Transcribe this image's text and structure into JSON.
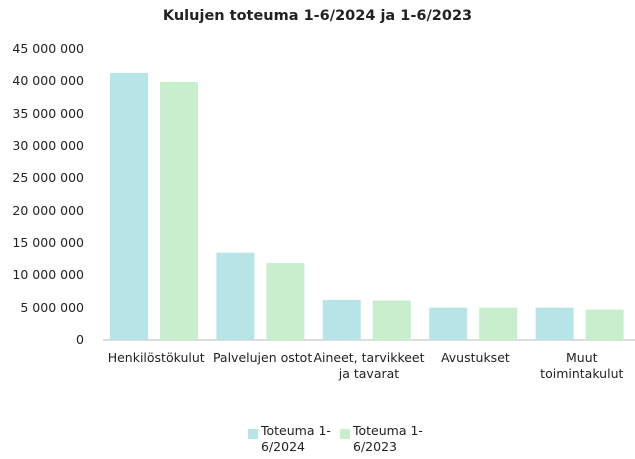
{
  "chart_data": {
    "type": "bar",
    "title": "Kulujen toteuma 1-6/2024 ja 1-6/2023",
    "categories": [
      "Henkilöstökulut",
      "Palvelujen ostot",
      "Aineet, tarvikkeet ja tavarat",
      "Avustukset",
      "Muut toimintakulut"
    ],
    "series": [
      {
        "name": "Toteuma 1-6/2024",
        "color": "#b6e4e7",
        "values": [
          41300000,
          13500000,
          6200000,
          5000000,
          5000000
        ]
      },
      {
        "name": "Toteuma 1-6/2023",
        "color": "#c8efcc",
        "values": [
          39900000,
          11900000,
          6100000,
          5000000,
          4700000
        ]
      }
    ],
    "ylim": [
      0,
      45000000
    ],
    "yticks": [
      0,
      {
        "value": 5000000,
        "label": "5 000 000"
      },
      {
        "value": 10000000,
        "label": "10 000 000"
      },
      {
        "value": 15000000,
        "label": "15 000 000"
      },
      {
        "value": 20000000,
        "label": "20 000 000"
      },
      {
        "value": 25000000,
        "label": "25 000 000"
      },
      {
        "value": 30000000,
        "label": "30 000 000"
      },
      {
        "value": 35000000,
        "label": "35 000 000"
      },
      {
        "value": 40000000,
        "label": "40 000 000"
      },
      {
        "value": 45000000,
        "label": "45 000 000"
      }
    ],
    "grid": false,
    "legend": "bottom"
  }
}
